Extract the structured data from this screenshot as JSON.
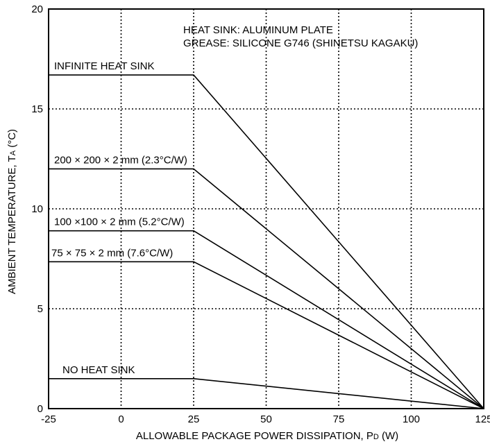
{
  "chart_data": {
    "type": "line",
    "title": "",
    "xlabel_main": "ALLOWABLE PACKAGE POWER DISSIPATION, P",
    "xlabel_sub": "D",
    "xlabel_unit": " (W)",
    "ylabel_main": "AMBIENT TEMPERATURE, T",
    "ylabel_sub": "A",
    "ylabel_unit": " (°C)",
    "xlim": [
      -25,
      125
    ],
    "ylim": [
      0,
      20
    ],
    "xticks": [
      -25,
      0,
      25,
      50,
      75,
      100,
      125
    ],
    "yticks": [
      0,
      5,
      10,
      15,
      20
    ],
    "grid": true,
    "notes": [
      "HEAT SINK: ALUMINUM PLATE",
      "GREASE: SILICONE G746 (SHINETSU KAGAKU)"
    ],
    "series": [
      {
        "name": "INFINITE HEAT SINK",
        "x": [
          -25,
          25,
          125
        ],
        "y": [
          16.7,
          16.7,
          0
        ]
      },
      {
        "name": "200 × 200 × 2 mm (2.3°C/W)",
        "x": [
          -25,
          25,
          125
        ],
        "y": [
          12.0,
          12.0,
          0
        ]
      },
      {
        "name": "100 ×100 × 2 mm (5.2°C/W)",
        "x": [
          -25,
          25,
          125
        ],
        "y": [
          8.9,
          8.9,
          0
        ]
      },
      {
        "name": "75 × 75 × 2 mm (7.6°C/W)",
        "x": [
          -25,
          25,
          125
        ],
        "y": [
          7.35,
          7.35,
          0
        ]
      },
      {
        "name": "NO HEAT SINK",
        "x": [
          -25,
          25,
          125
        ],
        "y": [
          1.5,
          1.5,
          0
        ]
      }
    ]
  }
}
